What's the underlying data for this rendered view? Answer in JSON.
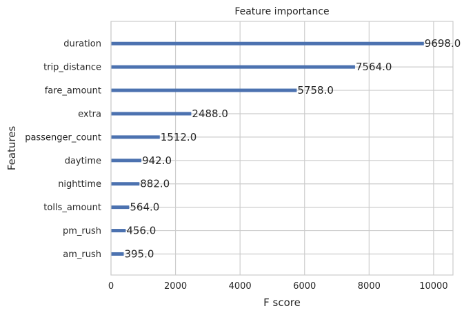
{
  "chart_data": {
    "type": "bar",
    "orientation": "horizontal",
    "title": "Feature importance",
    "xlabel": "F score",
    "ylabel": "Features",
    "categories": [
      "duration",
      "trip_distance",
      "fare_amount",
      "extra",
      "passenger_count",
      "daytime",
      "nighttime",
      "tolls_amount",
      "pm_rush",
      "am_rush"
    ],
    "values": [
      9698.0,
      7564.0,
      5758.0,
      2488.0,
      1512.0,
      942.0,
      882.0,
      564.0,
      456.0,
      395.0
    ],
    "data_labels": [
      "9698.0",
      "7564.0",
      "5758.0",
      "2488.0",
      "1512.0",
      "942.0",
      "882.0",
      "564.0",
      "456.0",
      "395.0"
    ],
    "xlim": [
      0,
      10600
    ],
    "xticks": [
      0,
      2000,
      4000,
      6000,
      8000,
      10000
    ],
    "xtick_labels": [
      "0",
      "2000",
      "4000",
      "6000",
      "8000",
      "10000"
    ],
    "grid": true,
    "bar_color": "#4c72b0"
  }
}
